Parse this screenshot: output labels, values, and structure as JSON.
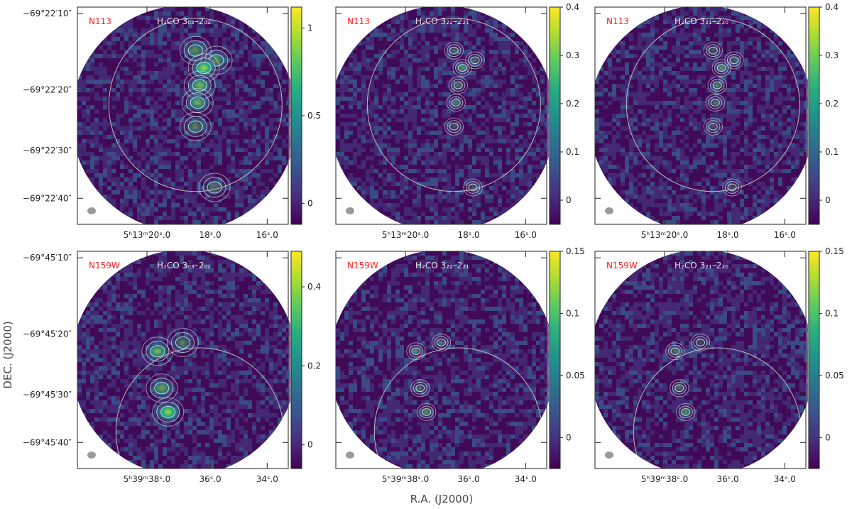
{
  "figure": {
    "xlabel": "R.A. (J2000)",
    "ylabel": "DEC. (J2000)"
  },
  "colormap": [
    "#440154",
    "#472d7b",
    "#3b528b",
    "#2c728e",
    "#21918c",
    "#28ae80",
    "#5ec962",
    "#addc30",
    "#fde725"
  ],
  "colors": {
    "source_label": "#ff1e1e",
    "line_label": "#e6e6e6",
    "contour": "#e8e8e8",
    "beam": "#9a9a9a"
  },
  "chart_data": [
    {
      "type": "heatmap",
      "source": "N113",
      "line": "H₂CO 3₀₃–2₀₂",
      "xticks": [
        "5ʰ13ᵐ20ˢ.0",
        "18ˢ.0",
        "16ˢ.0"
      ],
      "yticks": [
        "−69°22′10″",
        "−69°22′20″",
        "−69°22′30″",
        "−69°22′40″"
      ],
      "colorbar": {
        "ticks": [
          0,
          0.5,
          1
        ],
        "tick_labels": [
          "0",
          "0.5",
          "1"
        ],
        "range": [
          -0.12,
          1.12
        ]
      }
    },
    {
      "type": "heatmap",
      "source": "N113",
      "line": "H₂CO 3₂₂–2₂₁",
      "xticks": [
        "5ʰ13ᵐ20ˢ.0",
        "18ˢ.0",
        "16ˢ.0"
      ],
      "yticks": [],
      "colorbar": {
        "ticks": [
          0,
          0.1,
          0.2,
          0.3,
          0.4
        ],
        "tick_labels": [
          "0",
          "0.1",
          "0.2",
          "0.3",
          "0.4"
        ],
        "range": [
          -0.05,
          0.4
        ]
      }
    },
    {
      "type": "heatmap",
      "source": "N113",
      "line": "H₂CO 3₂₁–2₂₀",
      "xticks": [
        "5ʰ13ᵐ20ˢ.0",
        "18ˢ.0",
        "16ˢ.0"
      ],
      "yticks": [],
      "colorbar": {
        "ticks": [
          0,
          0.1,
          0.2,
          0.3,
          0.4
        ],
        "tick_labels": [
          "0",
          "0.1",
          "0.2",
          "0.3",
          "0.4"
        ],
        "range": [
          -0.05,
          0.4
        ]
      }
    },
    {
      "type": "heatmap",
      "source": "N159W",
      "line": "H₂CO 3₀₃–2₀₂",
      "xticks": [
        "5ʰ39ᵐ38ˢ.0",
        "36ˢ.0",
        "34ˢ.0"
      ],
      "yticks": [
        "−69°45′10″",
        "−69°45′20″",
        "−69°45′30″",
        "−69°45′40″"
      ],
      "colorbar": {
        "ticks": [
          0,
          0.2,
          0.4
        ],
        "tick_labels": [
          "0",
          "0.2",
          "0.4"
        ],
        "range": [
          -0.06,
          0.49
        ]
      }
    },
    {
      "type": "heatmap",
      "source": "N159W",
      "line": "H₂CO 3₂₂–2₂₁",
      "xticks": [
        "5ʰ39ᵐ38ˢ.0",
        "36ˢ.0",
        "34ˢ.0"
      ],
      "yticks": [],
      "colorbar": {
        "ticks": [
          0,
          0.05,
          0.1,
          0.15
        ],
        "tick_labels": [
          "0",
          "0.05",
          "0.1",
          "0.15"
        ],
        "range": [
          -0.025,
          0.15
        ]
      }
    },
    {
      "type": "heatmap",
      "source": "N159W",
      "line": "H₂CO 3₂₁–2₂₀",
      "xticks": [
        "5ʰ39ᵐ38ˢ.0",
        "36ˢ.0",
        "34ˢ.0"
      ],
      "yticks": [],
      "colorbar": {
        "ticks": [
          0,
          0.05,
          0.1,
          0.15
        ],
        "tick_labels": [
          "0",
          "0.05",
          "0.1",
          "0.15"
        ],
        "range": [
          -0.025,
          0.15
        ]
      }
    }
  ]
}
